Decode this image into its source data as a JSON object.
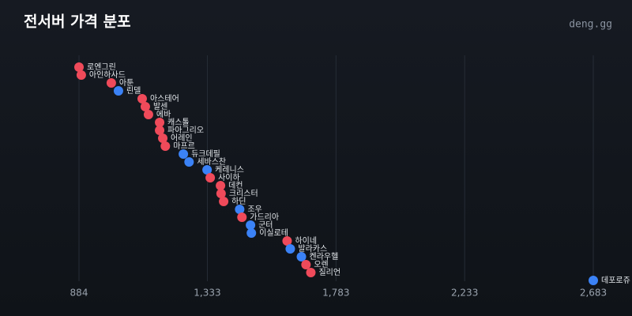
{
  "chart_data": {
    "type": "dot",
    "title": "전서버 가격 분포",
    "brand": "deng.gg",
    "categories": [
      "로엔그린",
      "아인하사드",
      "아툰",
      "린델",
      "아스테어",
      "발센",
      "에바",
      "캐스톨",
      "파아그리오",
      "어레인",
      "마프르",
      "듀크데필",
      "세바스찬",
      "케레니스",
      "사이하",
      "데컨",
      "크리스터",
      "하딘",
      "조우",
      "가드리아",
      "군터",
      "이실로테",
      "하이네",
      "발라카스",
      "켄라우헬",
      "오렌",
      "질리언",
      "데포로쥬"
    ],
    "values": [
      884,
      892,
      997,
      1022,
      1105,
      1116,
      1127,
      1166,
      1166,
      1177,
      1186,
      1249,
      1269,
      1332,
      1343,
      1379,
      1381,
      1390,
      1446,
      1454,
      1484,
      1487,
      1612,
      1623,
      1662,
      1678,
      1695,
      2683
    ],
    "colors": [
      "#ef4a5a",
      "#ef4a5a",
      "#ef4a5a",
      "#3b82f6",
      "#ef4a5a",
      "#ef4a5a",
      "#ef4a5a",
      "#ef4a5a",
      "#ef4a5a",
      "#ef4a5a",
      "#ef4a5a",
      "#3b82f6",
      "#3b82f6",
      "#3b82f6",
      "#ef4a5a",
      "#ef4a5a",
      "#ef4a5a",
      "#ef4a5a",
      "#3b82f6",
      "#ef4a5a",
      "#3b82f6",
      "#3b82f6",
      "#ef4a5a",
      "#3b82f6",
      "#3b82f6",
      "#ef4a5a",
      "#ef4a5a",
      "#3b82f6"
    ],
    "xlim": [
      884,
      2683
    ],
    "xticks": [
      884,
      {
        "value": 1333,
        "label": "1,333"
      },
      {
        "value": 1783,
        "label": "1,783"
      },
      {
        "value": 2233,
        "label": "2,233"
      },
      {
        "value": 2683,
        "label": "2,683"
      }
    ],
    "grid": true
  }
}
